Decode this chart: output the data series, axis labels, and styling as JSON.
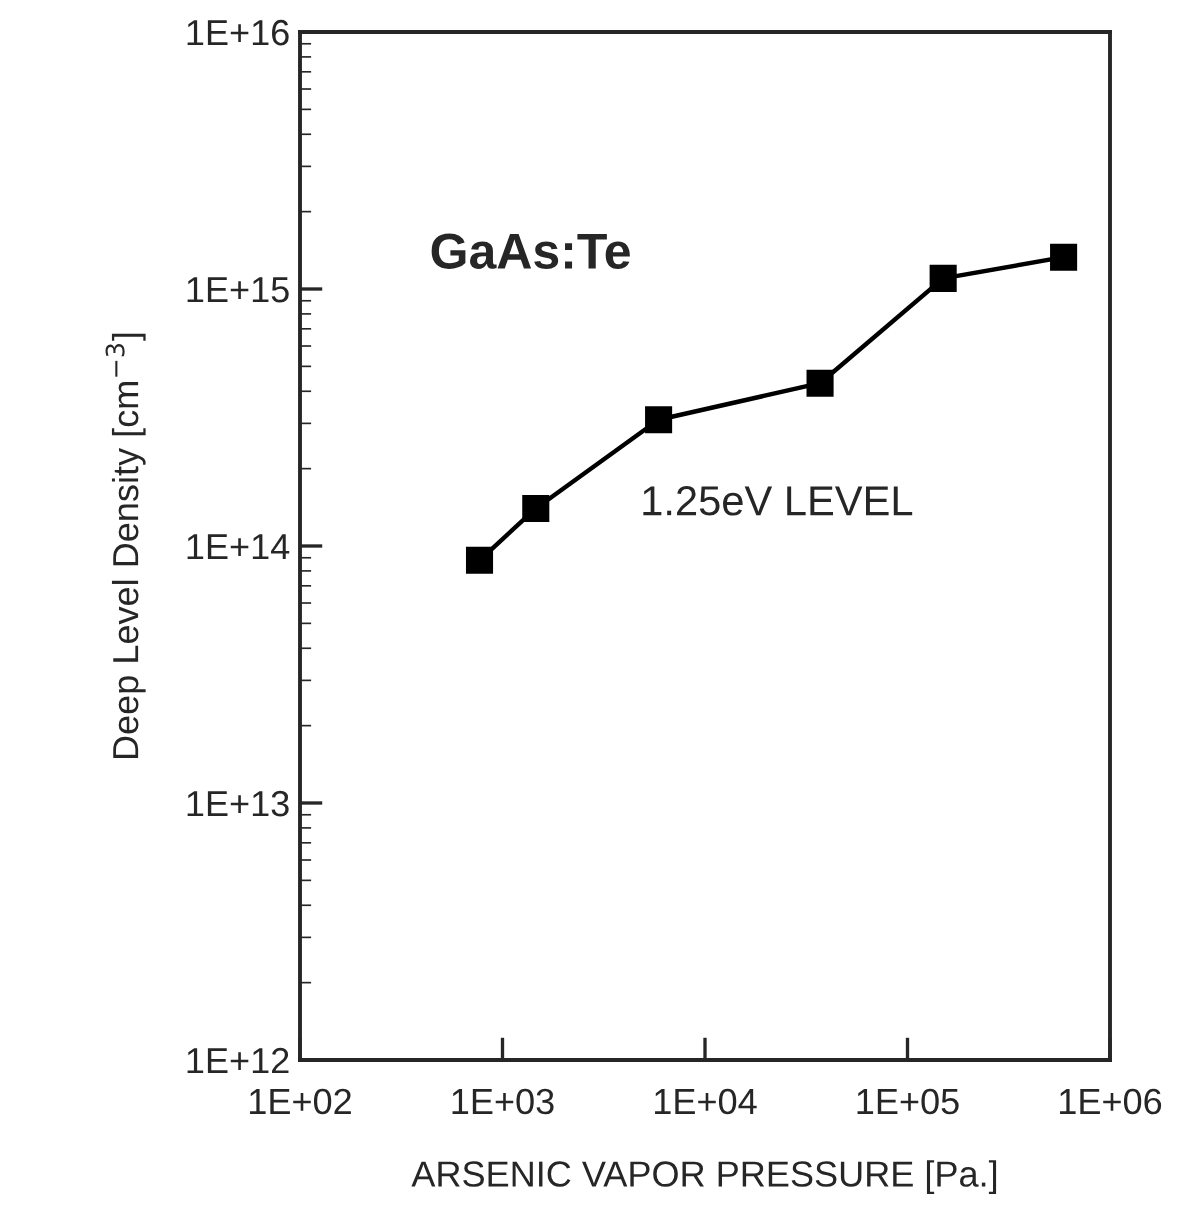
{
  "chart_data": {
    "type": "line",
    "xlabel": "ARSENIC VAPOR PRESSURE [Pa.]",
    "ylabel": "Deep Level Density [cm$^{−3}$]",
    "x": [
      770,
      1460,
      5900,
      37000,
      150000,
      590000
    ],
    "series": [
      {
        "color": "#000000",
        "values": [
          88000000000000.0,
          140000000000000.0,
          310000000000000.0,
          430000000000000.0,
          1100000000000000.0,
          1330000000000000.0
        ]
      }
    ],
    "log": "xy",
    "marker": "square",
    "line_style": "solid",
    "grid": false,
    "xlim": [
      100,
      1000000
    ],
    "xticks": [
      {
        "value": 100,
        "label": "1E+02"
      },
      {
        "value": 1000,
        "label": "1E+03"
      },
      {
        "value": 10000,
        "label": "1E+04"
      },
      {
        "value": 100000,
        "label": "1E+05"
      },
      {
        "value": 1000000,
        "label": "1E+06"
      }
    ],
    "ylim": [
      1000000000000.0,
      1e+16
    ],
    "yticks": [
      {
        "value": 1000000000000.0,
        "label": "1E+12"
      },
      {
        "value": 10000000000000.0,
        "label": "1E+13"
      },
      {
        "value": 100000000000000.0,
        "label": "1E+14"
      },
      {
        "value": 1000000000000000.0,
        "label": "1E+15"
      },
      {
        "value": 1e+16,
        "label": "1E+16"
      }
    ],
    "annotations": [
      "GaAs:Te",
      "1.25eV LEVEL"
    ]
  }
}
